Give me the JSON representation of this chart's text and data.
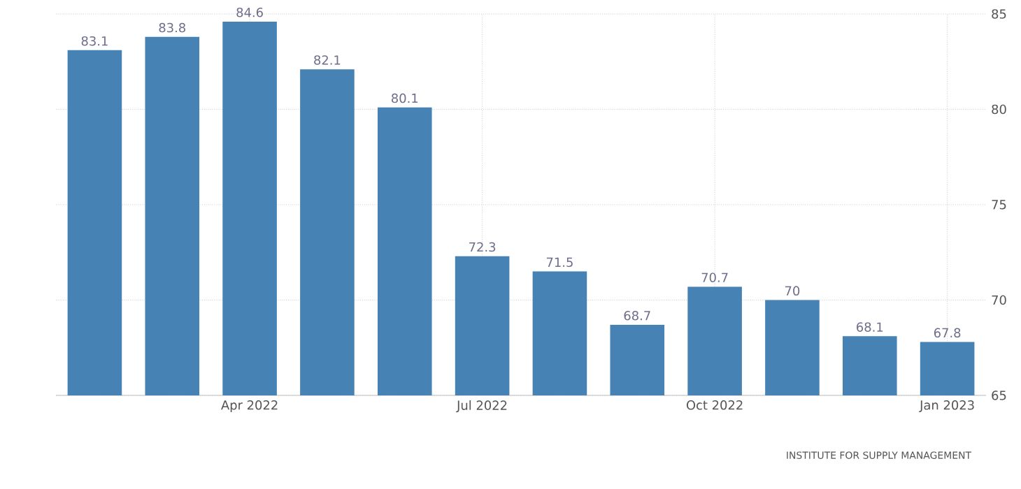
{
  "chart_data": {
    "type": "bar",
    "categories": [
      null,
      null,
      "Apr 2022",
      null,
      null,
      "Jul 2022",
      null,
      null,
      "Oct 2022",
      null,
      null,
      "Jan 2023"
    ],
    "values": [
      83.1,
      83.8,
      84.6,
      82.1,
      80.1,
      72.3,
      71.5,
      68.7,
      70.7,
      70,
      68.1,
      67.8
    ],
    "color": "#4682b4",
    "ylim": [
      65,
      85
    ],
    "yticks": [
      65,
      70,
      75,
      80,
      85
    ],
    "grid": true,
    "data_labels": true,
    "annotations": [
      "INSTITUTE FOR SUPPLY MANAGEMENT"
    ]
  }
}
